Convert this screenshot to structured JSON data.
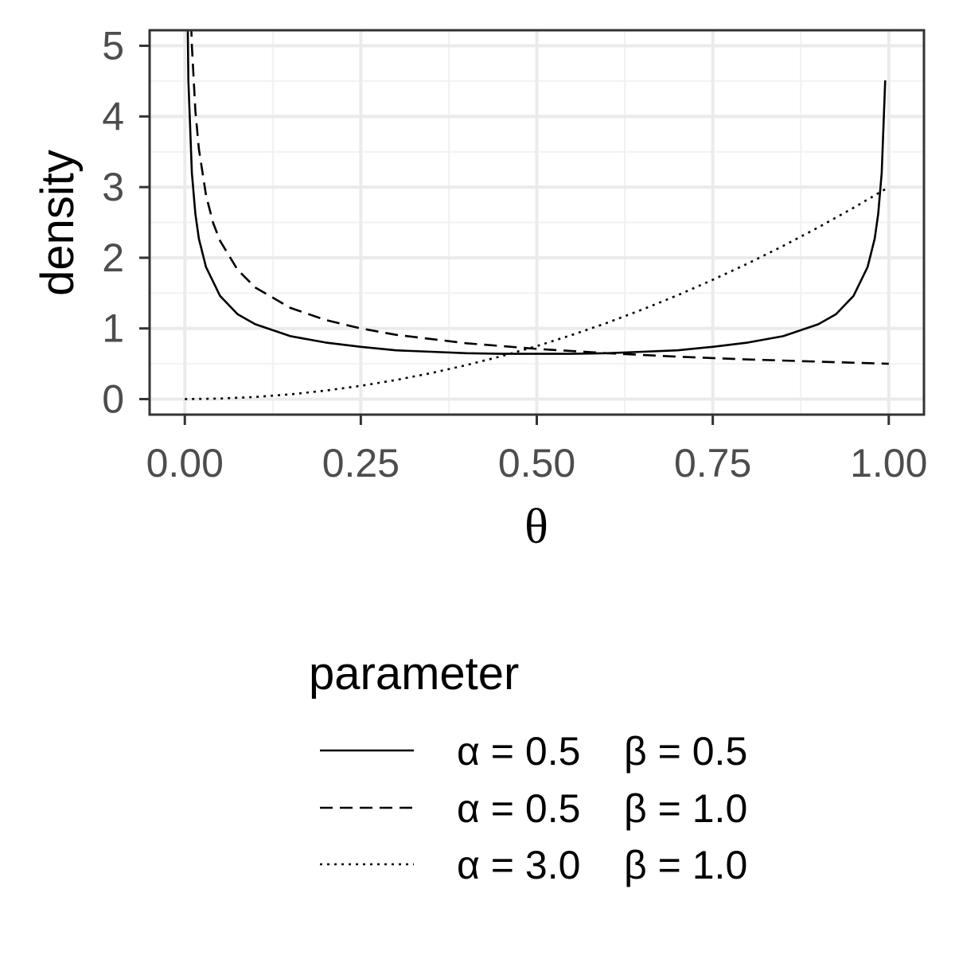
{
  "chart_data": {
    "type": "line",
    "title": "",
    "xlabel": "θ",
    "ylabel": "density",
    "xlim": [
      -0.05,
      1.05
    ],
    "ylim": [
      -0.22,
      5.22
    ],
    "xticks": [
      0,
      0.25,
      0.5,
      0.75,
      1
    ],
    "xtick_labels": [
      "0.00",
      "0.25",
      "0.50",
      "0.75",
      "1.00"
    ],
    "yticks": [
      0,
      1,
      2,
      3,
      4,
      5
    ],
    "ytick_labels": [
      "0",
      "1",
      "2",
      "3",
      "4",
      "5"
    ],
    "grid": true,
    "legend": {
      "title": "parameter",
      "position": "bottom"
    },
    "series": [
      {
        "name": "α = 0.5  β = 0.5",
        "alpha_label": "α = 0.5",
        "beta_label": "β = 0.5",
        "linestyle": "solid",
        "x": [
          0.002,
          0.005,
          0.01,
          0.015,
          0.02,
          0.03,
          0.05,
          0.075,
          0.1,
          0.15,
          0.2,
          0.25,
          0.3,
          0.35,
          0.4,
          0.45,
          0.5,
          0.55,
          0.6,
          0.65,
          0.7,
          0.75,
          0.8,
          0.85,
          0.9,
          0.925,
          0.95,
          0.97,
          0.98,
          0.985,
          0.99,
          0.995
        ],
        "y": [
          7.13,
          4.51,
          3.2,
          2.62,
          2.27,
          1.87,
          1.46,
          1.2,
          1.06,
          0.89,
          0.8,
          0.74,
          0.69,
          0.67,
          0.65,
          0.64,
          0.64,
          0.64,
          0.65,
          0.67,
          0.69,
          0.74,
          0.8,
          0.89,
          1.06,
          1.2,
          1.46,
          1.87,
          2.27,
          2.62,
          3.2,
          4.51
        ]
      },
      {
        "name": "α = 0.5  β = 1.0",
        "alpha_label": "α = 0.5",
        "beta_label": "β = 1.0",
        "linestyle": "dashed",
        "x": [
          0.008,
          0.01,
          0.015,
          0.02,
          0.03,
          0.04,
          0.05,
          0.075,
          0.1,
          0.15,
          0.2,
          0.25,
          0.3,
          0.4,
          0.5,
          0.6,
          0.7,
          0.8,
          0.9,
          1.0
        ],
        "y": [
          5.59,
          5.0,
          4.08,
          3.54,
          2.89,
          2.5,
          2.24,
          1.83,
          1.58,
          1.29,
          1.12,
          1.0,
          0.91,
          0.79,
          0.71,
          0.65,
          0.6,
          0.56,
          0.53,
          0.5
        ]
      },
      {
        "name": "α = 3.0  β = 1.0",
        "alpha_label": "α = 3.0",
        "beta_label": "β = 1.0",
        "linestyle": "dotted",
        "x": [
          0.0,
          0.05,
          0.1,
          0.15,
          0.2,
          0.25,
          0.3,
          0.35,
          0.4,
          0.45,
          0.5,
          0.55,
          0.6,
          0.65,
          0.7,
          0.75,
          0.8,
          0.85,
          0.9,
          0.95,
          1.0
        ],
        "y": [
          0.0,
          0.0075,
          0.03,
          0.0675,
          0.12,
          0.1875,
          0.27,
          0.3675,
          0.48,
          0.6075,
          0.75,
          0.9075,
          1.08,
          1.2675,
          1.47,
          1.6875,
          1.92,
          2.1675,
          2.43,
          2.7075,
          3.0
        ]
      }
    ]
  },
  "colors": {
    "line": "#000000",
    "panel_border": "#333333",
    "grid_major": "#ebebeb",
    "grid_minor": "#f2f2f2",
    "tick_text": "#4d4d4d"
  }
}
